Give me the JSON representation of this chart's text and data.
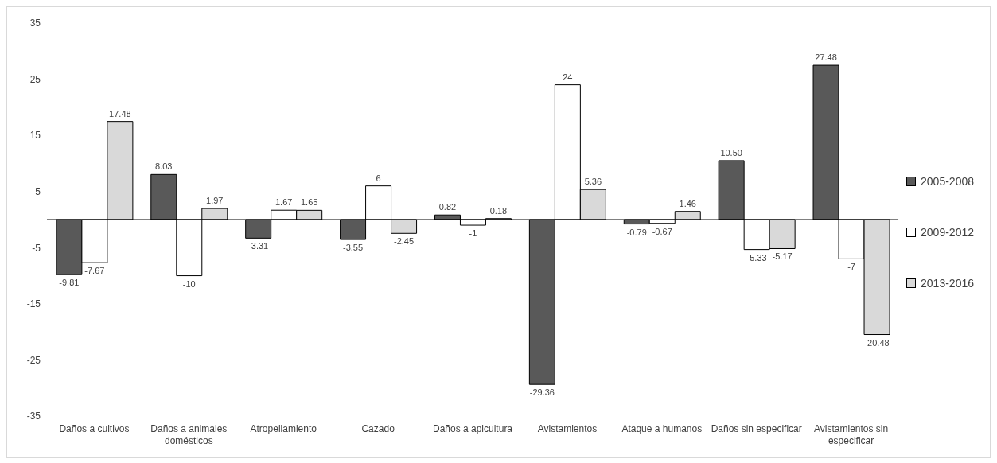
{
  "chart_data": {
    "type": "bar",
    "categories": [
      "Daños a cultivos",
      "Daños a animales domésticos",
      "Atropellamiento",
      "Cazado",
      "Daños a apicultura",
      "Avistamientos",
      "Ataque a humanos",
      "Daños sin especificar",
      "Avistamientos sin especificar"
    ],
    "series": [
      {
        "name": "2005-2008",
        "color": "#595959",
        "values": [
          -9.81,
          8.03,
          -3.31,
          -3.55,
          0.82,
          -29.36,
          -0.79,
          10.5,
          27.48
        ],
        "value_labels": [
          "-9.81",
          "8.03",
          "-3.31",
          "-3.55",
          "0.82",
          "-29.36",
          "-0.79",
          "10.50",
          "27.48"
        ]
      },
      {
        "name": "2009-2012",
        "color": "#ffffff",
        "values": [
          -7.67,
          -10,
          1.67,
          6,
          -1,
          24,
          -0.67,
          -5.33,
          -7
        ],
        "value_labels": [
          "-7.67",
          "-10",
          "1.67",
          "6",
          "-1",
          "24",
          "-0.67",
          "-5.33",
          "-7"
        ]
      },
      {
        "name": "2013-2016",
        "color": "#d9d9d9",
        "values": [
          17.48,
          1.97,
          1.65,
          -2.45,
          0.18,
          5.36,
          1.46,
          -5.17,
          -20.48
        ],
        "value_labels": [
          "17.48",
          "1.97",
          "1.65",
          "-2.45",
          "0.18",
          "5.36",
          "1.46",
          "-5.17",
          "-20.48"
        ]
      }
    ],
    "ylim": [
      -35,
      35
    ],
    "yticks": [
      -35,
      -25,
      -15,
      -5,
      5,
      15,
      25,
      35
    ],
    "grid": false,
    "legend": "right"
  }
}
